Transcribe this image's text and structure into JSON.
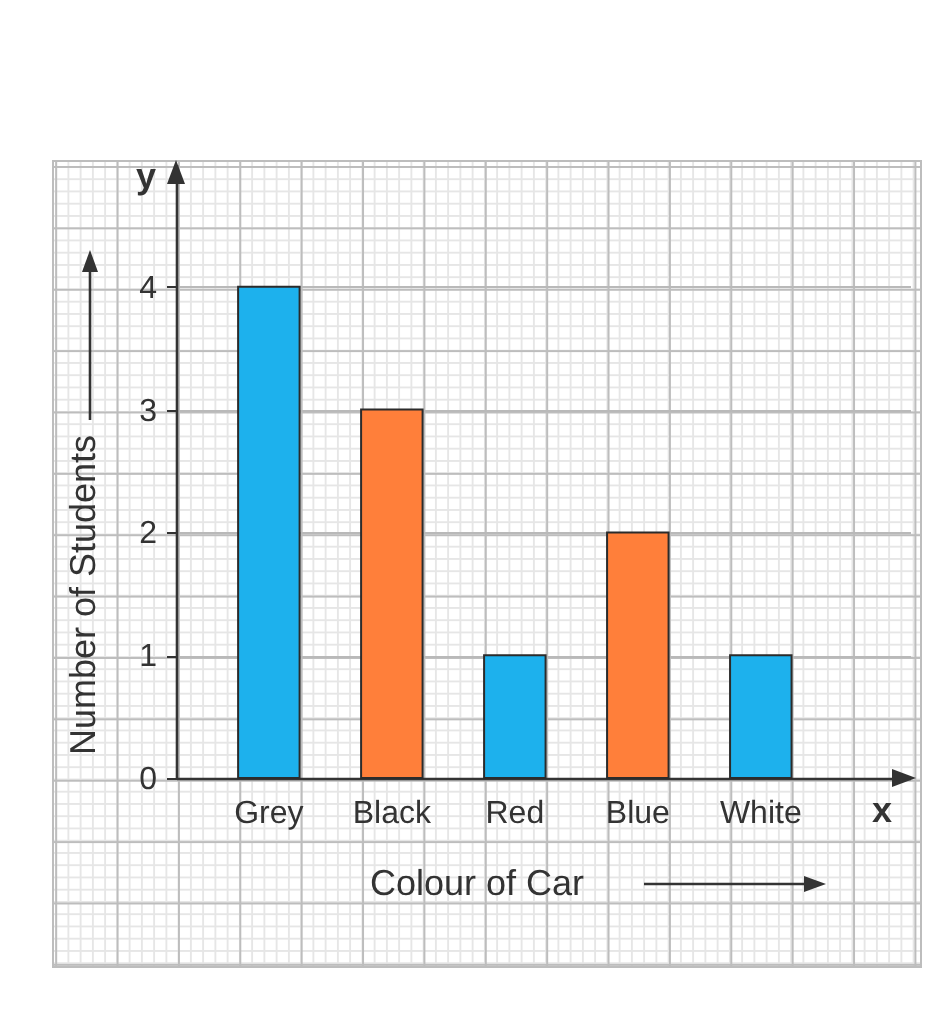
{
  "chart_data": {
    "type": "bar",
    "xlabel": "Colour of Car",
    "ylabel": "Number of Students",
    "categories": [
      "Grey",
      "Black",
      "Red",
      "Blue",
      "White"
    ],
    "values": [
      4,
      3,
      1,
      2,
      1
    ],
    "colors": [
      "#1db1ed",
      "#ff7f3a",
      "#1db1ed",
      "#ff7f3a",
      "#1db1ed"
    ],
    "ylim": [
      0,
      5
    ],
    "yticks": [
      0,
      1,
      2,
      3,
      4
    ],
    "grid": true,
    "annotations": [
      "y",
      "x"
    ]
  }
}
